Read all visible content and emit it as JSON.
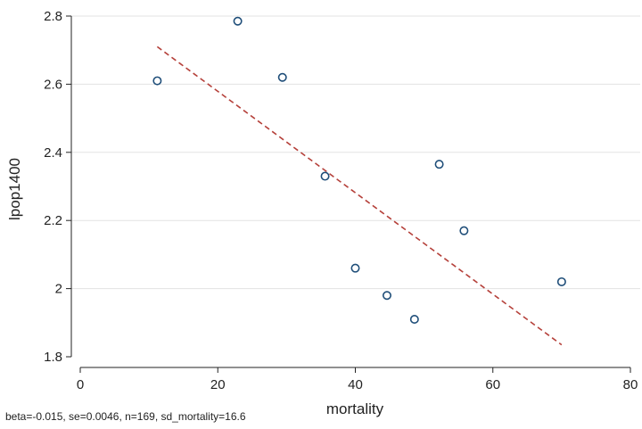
{
  "chart_data": {
    "type": "scatter",
    "title": "",
    "xlabel": "mortality",
    "ylabel": "lpop1400",
    "xlim": [
      0,
      80
    ],
    "ylim": [
      1.8,
      2.8
    ],
    "xticks": [
      "0",
      "20",
      "40",
      "60",
      "80"
    ],
    "yticks": [
      "1.8",
      "2",
      "2.2",
      "2.4",
      "2.6",
      "2.8"
    ],
    "grid": "horizontal",
    "points": [
      {
        "x": 11.2,
        "y": 2.61
      },
      {
        "x": 22.9,
        "y": 2.785
      },
      {
        "x": 29.4,
        "y": 2.62
      },
      {
        "x": 35.6,
        "y": 2.33
      },
      {
        "x": 40.0,
        "y": 2.06
      },
      {
        "x": 44.6,
        "y": 1.98
      },
      {
        "x": 48.6,
        "y": 1.91
      },
      {
        "x": 52.2,
        "y": 2.365
      },
      {
        "x": 55.8,
        "y": 2.17
      },
      {
        "x": 70.0,
        "y": 2.02
      }
    ],
    "fit_line": {
      "x": [
        11.2,
        70.0
      ],
      "y": [
        2.71,
        1.835
      ]
    },
    "colors": {
      "marker": "#1f4e79",
      "fit": "#b5403a",
      "grid": "#e3e3e3"
    }
  },
  "note": "beta=-0.015, se=0.0046, n=169, sd_mortality=16.6"
}
